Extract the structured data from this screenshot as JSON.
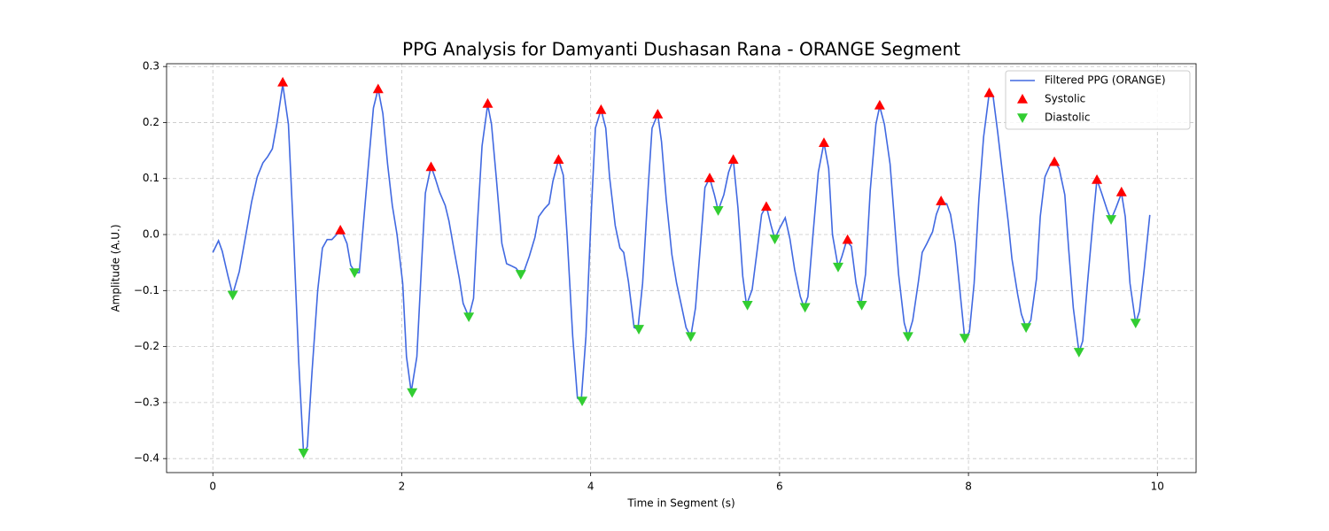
{
  "chart_data": {
    "type": "line",
    "title": "PPG Analysis for Damyanti Dushasan Rana - ORANGE Segment",
    "xlabel": "Time in Segment (s)",
    "ylabel": "Amplitude (A.U.)",
    "xlim": [
      -0.49,
      10.41
    ],
    "ylim": [
      -0.425,
      0.305
    ],
    "xticks": [
      0,
      2,
      4,
      6,
      8,
      10
    ],
    "yticks": [
      {
        "value": -0.4,
        "label": "−0.4"
      },
      {
        "value": -0.3,
        "label": "−0.3"
      },
      {
        "value": -0.2,
        "label": "−0.2"
      },
      {
        "value": -0.1,
        "label": "−0.1"
      },
      {
        "value": 0,
        "label": "0.0"
      },
      0.1,
      0.2,
      0.3
    ],
    "grid": true,
    "legend": "upper right",
    "series": [
      {
        "name": "Filtered PPG (ORANGE)",
        "color": "#4169e1",
        "marker": "none",
        "x": [
          0,
          0.06,
          0.1,
          0.16,
          0.21,
          0.28,
          0.35,
          0.41,
          0.47,
          0.53,
          0.58,
          0.63,
          0.68,
          0.74,
          0.8,
          0.85,
          0.91,
          0.96,
          1.0,
          1.05,
          1.11,
          1.16,
          1.21,
          1.26,
          1.31,
          1.36,
          1.42,
          1.46,
          1.51,
          1.55,
          1.59,
          1.65,
          1.7,
          1.75,
          1.8,
          1.85,
          1.9,
          1.95,
          2.01,
          2.05,
          2.1,
          2.16,
          2.21,
          2.25,
          2.31,
          2.35,
          2.4,
          2.46,
          2.5,
          2.55,
          2.61,
          2.65,
          2.71,
          2.76,
          2.8,
          2.85,
          2.91,
          2.95,
          3.0,
          3.06,
          3.11,
          3.15,
          3.21,
          3.26,
          3.3,
          3.35,
          3.41,
          3.45,
          3.51,
          3.56,
          3.6,
          3.66,
          3.71,
          3.75,
          3.81,
          3.86,
          3.9,
          3.95,
          4.01,
          4.05,
          4.11,
          4.16,
          4.2,
          4.26,
          4.31,
          4.35,
          4.4,
          4.46,
          4.5,
          4.55,
          4.61,
          4.65,
          4.71,
          4.75,
          4.8,
          4.86,
          4.91,
          4.96,
          5.01,
          5.06,
          5.11,
          5.16,
          5.21,
          5.26,
          5.31,
          5.35,
          5.41,
          5.46,
          5.51,
          5.56,
          5.61,
          5.65,
          5.71,
          5.76,
          5.81,
          5.86,
          5.91,
          5.95,
          6.0,
          6.06,
          6.11,
          6.16,
          6.22,
          6.26,
          6.3,
          6.35,
          6.41,
          6.47,
          6.52,
          6.56,
          6.62,
          6.66,
          6.71,
          6.76,
          6.81,
          6.86,
          6.91,
          6.96,
          7.02,
          7.06,
          7.11,
          7.17,
          7.21,
          7.26,
          7.32,
          7.36,
          7.41,
          7.47,
          7.51,
          7.56,
          7.62,
          7.66,
          7.71,
          7.77,
          7.81,
          7.86,
          7.92,
          7.96,
          8.01,
          8.06,
          8.11,
          8.16,
          8.22,
          8.26,
          8.31,
          8.37,
          8.42,
          8.46,
          8.52,
          8.56,
          8.61,
          8.66,
          8.72,
          8.76,
          8.81,
          8.87,
          8.91,
          8.96,
          9.02,
          9.06,
          9.11,
          9.17,
          9.21,
          9.26,
          9.32,
          9.36,
          9.41,
          9.47,
          9.51,
          9.56,
          9.62,
          9.66,
          9.71,
          9.77,
          9.81,
          9.86,
          9.92
        ],
        "y": [
          -0.032,
          -0.011,
          -0.03,
          -0.074,
          -0.107,
          -0.066,
          0.0,
          0.058,
          0.103,
          0.128,
          0.139,
          0.153,
          0.2,
          0.268,
          0.197,
          0.016,
          -0.229,
          -0.39,
          -0.379,
          -0.245,
          -0.1,
          -0.024,
          -0.009,
          -0.009,
          0.0,
          0.008,
          -0.016,
          -0.055,
          -0.068,
          -0.068,
          0.011,
          0.13,
          0.226,
          0.26,
          0.216,
          0.126,
          0.052,
          0.0,
          -0.087,
          -0.218,
          -0.281,
          -0.218,
          -0.052,
          0.074,
          0.122,
          0.103,
          0.076,
          0.052,
          0.024,
          -0.024,
          -0.079,
          -0.123,
          -0.147,
          -0.114,
          0.016,
          0.158,
          0.232,
          0.197,
          0.103,
          -0.016,
          -0.052,
          -0.055,
          -0.06,
          -0.071,
          -0.063,
          -0.039,
          -0.005,
          0.032,
          0.046,
          0.055,
          0.095,
          0.134,
          0.106,
          0.0,
          -0.182,
          -0.292,
          -0.297,
          -0.182,
          0.052,
          0.19,
          0.223,
          0.19,
          0.103,
          0.016,
          -0.024,
          -0.032,
          -0.084,
          -0.166,
          -0.169,
          -0.087,
          0.087,
          0.19,
          0.215,
          0.166,
          0.063,
          -0.036,
          -0.087,
          -0.126,
          -0.166,
          -0.182,
          -0.131,
          -0.024,
          0.084,
          0.101,
          0.071,
          0.043,
          0.071,
          0.111,
          0.134,
          0.047,
          -0.074,
          -0.126,
          -0.098,
          -0.032,
          0.036,
          0.051,
          0.016,
          -0.008,
          0.011,
          0.03,
          -0.008,
          -0.063,
          -0.111,
          -0.13,
          -0.111,
          -0.008,
          0.111,
          0.164,
          0.118,
          0.0,
          -0.058,
          -0.039,
          -0.011,
          -0.021,
          -0.087,
          -0.126,
          -0.071,
          0.079,
          0.197,
          0.229,
          0.197,
          0.126,
          0.039,
          -0.071,
          -0.158,
          -0.182,
          -0.153,
          -0.084,
          -0.032,
          -0.016,
          0.005,
          0.036,
          0.058,
          0.055,
          0.036,
          -0.016,
          -0.118,
          -0.185,
          -0.174,
          -0.087,
          0.063,
          0.174,
          0.253,
          0.248,
          0.182,
          0.095,
          0.024,
          -0.043,
          -0.106,
          -0.142,
          -0.166,
          -0.153,
          -0.079,
          0.032,
          0.103,
          0.126,
          0.13,
          0.118,
          0.071,
          -0.024,
          -0.131,
          -0.21,
          -0.19,
          -0.087,
          0.027,
          0.098,
          0.074,
          0.043,
          0.027,
          0.047,
          0.074,
          0.032,
          -0.087,
          -0.158,
          -0.137,
          -0.063,
          0.035
        ]
      },
      {
        "name": "Systolic",
        "color": "#ff0000",
        "marker": "triangle-up",
        "x": [
          0.74,
          1.35,
          1.75,
          2.31,
          2.91,
          3.66,
          4.11,
          4.71,
          5.26,
          5.51,
          5.86,
          6.47,
          6.72,
          7.06,
          7.71,
          8.22,
          8.91,
          9.36,
          9.62
        ],
        "y": [
          0.272,
          0.008,
          0.26,
          0.121,
          0.234,
          0.134,
          0.223,
          0.215,
          0.101,
          0.134,
          0.05,
          0.164,
          -0.009,
          0.231,
          0.06,
          0.253,
          0.13,
          0.098,
          0.076
        ]
      },
      {
        "name": "Diastolic",
        "color": "#32cd32",
        "marker": "triangle-down",
        "x": [
          0.21,
          0.96,
          1.5,
          2.11,
          2.71,
          3.26,
          3.91,
          4.51,
          5.06,
          5.35,
          5.66,
          5.95,
          6.27,
          6.62,
          6.87,
          7.36,
          7.96,
          8.61,
          9.17,
          9.51,
          9.77
        ],
        "y": [
          -0.108,
          -0.39,
          -0.068,
          -0.282,
          -0.147,
          -0.071,
          -0.297,
          -0.169,
          -0.182,
          0.043,
          -0.126,
          -0.008,
          -0.13,
          -0.058,
          -0.126,
          -0.182,
          -0.185,
          -0.166,
          -0.21,
          0.027,
          -0.158
        ]
      }
    ]
  }
}
